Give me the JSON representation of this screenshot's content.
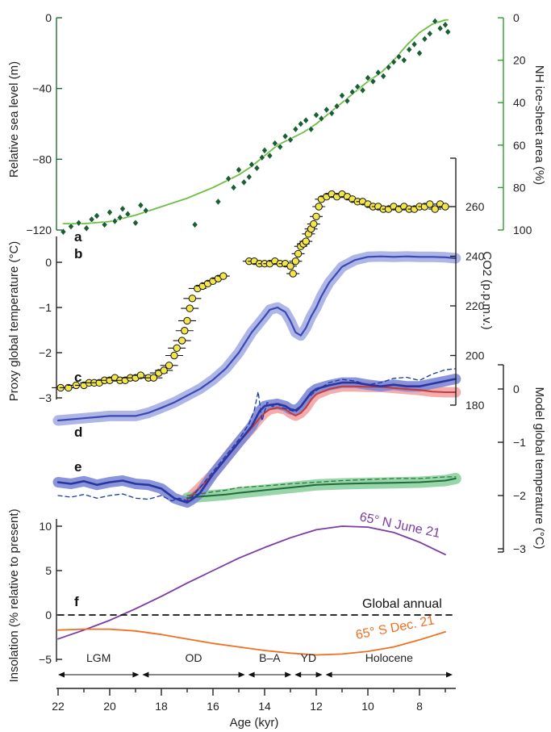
{
  "chart_data": {
    "type": "line",
    "x_axis": {
      "label": "Age (kyr)",
      "range": [
        22,
        6.5
      ],
      "ticks": [
        "22",
        "20",
        "18",
        "16",
        "14",
        "12",
        "10",
        "8"
      ],
      "values": [
        22,
        20,
        18,
        16,
        14,
        12,
        10,
        8
      ]
    },
    "periods": [
      {
        "label": "LGM",
        "start": 22,
        "end": 18.8
      },
      {
        "label": "OD",
        "start": 18.8,
        "end": 14.7
      },
      {
        "label": "B–A",
        "start": 14.7,
        "end": 12.9
      },
      {
        "label": "YD",
        "start": 12.9,
        "end": 11.7
      },
      {
        "label": "Holocene",
        "start": 11.7,
        "end": 6.5
      }
    ],
    "panel_labels": [
      "a",
      "b",
      "c",
      "d",
      "e",
      "f"
    ],
    "panels": {
      "sea_level": {
        "left_axis": {
          "label": "Relative sea level (m)",
          "range": [
            -120,
            0
          ],
          "ticks": [
            "0",
            "−40",
            "−80",
            "−120"
          ],
          "values": [
            0,
            -40,
            -80,
            -120
          ],
          "color": "#1f6b3a"
        },
        "right_axis": {
          "label": "NH ice-sheet area (%)",
          "range": [
            100,
            0
          ],
          "ticks": [
            "0",
            "20",
            "40",
            "60",
            "80",
            "100"
          ],
          "values": [
            0,
            20,
            40,
            60,
            80,
            100
          ],
          "color": "#2e9c2e"
        },
        "sea_level_points": {
          "color": "#1a5e33",
          "x": [
            21.8,
            21.5,
            21.2,
            20.9,
            20.7,
            20.5,
            20.2,
            20.0,
            19.8,
            19.6,
            19.5,
            19.3,
            19.0,
            18.8,
            18.6,
            16.7,
            15.8,
            15.4,
            15.2,
            15.0,
            14.8,
            14.6,
            14.5,
            14.3,
            14.1,
            14.0,
            13.8,
            13.6,
            13.4,
            13.2,
            13.0,
            12.8,
            12.6,
            12.4,
            12.2,
            12.0,
            11.8,
            11.6,
            11.4,
            11.2,
            11.0,
            10.8,
            10.6,
            10.4,
            10.2,
            10.0,
            9.8,
            9.6,
            9.4,
            9.2,
            9.0,
            8.8,
            8.6,
            8.4,
            8.2,
            8.0,
            7.8,
            7.6,
            7.4,
            7.2,
            7.0,
            6.9
          ],
          "y": [
            -121,
            -118,
            -116,
            -119,
            -114,
            -112,
            -117,
            -110,
            -115,
            -113,
            -108,
            -111,
            -116,
            -106,
            -109,
            -117,
            -104,
            -91,
            -96,
            -86,
            -93,
            -90,
            -83,
            -85,
            -79,
            -75,
            -78,
            -71,
            -73,
            -67,
            -69,
            -63,
            -60,
            -58,
            -63,
            -55,
            -57,
            -52,
            -54,
            -50,
            -44,
            -47,
            -42,
            -39,
            -41,
            -34,
            -36,
            -31,
            -33,
            -28,
            -25,
            -22,
            -24,
            -18,
            -15,
            -20,
            -12,
            -9,
            -2,
            -6,
            -4,
            -8
          ]
        },
        "ice_sheet_area": {
          "color": "#6cbf3f",
          "x": [
            21.8,
            21,
            20,
            19,
            18,
            17,
            16,
            15,
            14.5,
            14,
            13.5,
            13,
            12.5,
            12,
            11.5,
            11,
            10.5,
            10,
            9.5,
            9,
            8.5,
            8,
            7.5,
            7,
            6.9
          ],
          "y": [
            97,
            97,
            96,
            93,
            89,
            85,
            80,
            74,
            70,
            65,
            60,
            57,
            54,
            50,
            45,
            40,
            35,
            30,
            26,
            20,
            13,
            7,
            3,
            1,
            1
          ]
        }
      },
      "co2": {
        "right_axis": {
          "label": "CO2 (p.p.m.v.)",
          "range": [
            180,
            270
          ],
          "ticks": [
            "180",
            "200",
            "220",
            "240",
            "260"
          ],
          "values": [
            180,
            200,
            220,
            240,
            260
          ]
        },
        "points": {
          "color": "#f2e64a",
          "x": [
            21.9,
            21.6,
            21.3,
            21.0,
            20.8,
            20.6,
            20.4,
            20.2,
            20.0,
            19.8,
            19.6,
            19.4,
            19.2,
            19.0,
            18.8,
            18.5,
            18.3,
            18.1,
            17.9,
            17.7,
            17.5,
            17.4,
            17.2,
            17.1,
            17.0,
            16.9,
            16.8,
            16.6,
            16.4,
            16.2,
            16.0,
            15.8,
            15.6,
            14.6,
            14.4,
            14.2,
            14.0,
            13.8,
            13.6,
            13.4,
            13.2,
            13.0,
            12.9,
            12.8,
            12.7,
            12.6,
            12.5,
            12.4,
            12.3,
            12.2,
            12.1,
            12.0,
            11.9,
            11.8,
            11.6,
            11.4,
            11.2,
            11.0,
            10.8,
            10.6,
            10.4,
            10.2,
            10.0,
            9.8,
            9.6,
            9.4,
            9.2,
            9.0,
            8.8,
            8.6,
            8.4,
            8.2,
            8.0,
            7.8,
            7.6,
            7.4,
            7.2,
            7.0
          ],
          "y": [
            187,
            187,
            188,
            188,
            189,
            189,
            189,
            190,
            190,
            191,
            190,
            190,
            191,
            191,
            192,
            191,
            191,
            193,
            194,
            196,
            200,
            203,
            206,
            210,
            214,
            219,
            223,
            227,
            228,
            229,
            230,
            231,
            232,
            238,
            238,
            237,
            237,
            237,
            238,
            237,
            237,
            236,
            233,
            238,
            241,
            244,
            245,
            246,
            249,
            251,
            253,
            256,
            260,
            263,
            264,
            265,
            264,
            265,
            264,
            263,
            262,
            262,
            261,
            260,
            260,
            259,
            259,
            260,
            259,
            260,
            259,
            259,
            260,
            260,
            261,
            259,
            261,
            260
          ]
        }
      },
      "temperature": {
        "left_axis": {
          "label": "Proxy global temperature (°C)",
          "range": [
            -3.7,
            0.3
          ],
          "ticks": [
            "0",
            "−1",
            "−2",
            "−3"
          ],
          "values": [
            0,
            -1,
            -2,
            -3
          ]
        },
        "proxy_global": {
          "name": "Proxy global",
          "color": "#3a49b5",
          "x": [
            22,
            21,
            20,
            19,
            18.5,
            18,
            17.5,
            17,
            16.5,
            16,
            15.5,
            15,
            14.5,
            14,
            13.8,
            13.5,
            13.2,
            13,
            12.8,
            12.6,
            12.4,
            12.2,
            12,
            11.8,
            11.5,
            11,
            10.5,
            10,
            9.5,
            9,
            8.5,
            8,
            7.5,
            7,
            6.6
          ],
          "y": [
            -3.5,
            -3.45,
            -3.4,
            -3.4,
            -3.33,
            -3.22,
            -3.1,
            -2.95,
            -2.8,
            -2.6,
            -2.35,
            -2.0,
            -1.55,
            -1.2,
            -1.05,
            -1.0,
            -1.1,
            -1.3,
            -1.55,
            -1.62,
            -1.45,
            -1.2,
            -1.0,
            -0.75,
            -0.45,
            -0.1,
            0.05,
            0.12,
            0.13,
            0.12,
            0.13,
            0.12,
            0.12,
            0.11,
            0.09
          ]
        }
      },
      "model": {
        "right_axis": {
          "label": "Model global temperature (°C)",
          "range": [
            -3.6,
            0.35
          ],
          "ticks": [
            "0",
            "−1",
            "−2",
            "−3"
          ],
          "values": [
            0,
            -1,
            -2,
            -3
          ]
        },
        "proxy_tropics": {
          "color": "#3a49b5",
          "x": [
            22,
            21.5,
            21,
            20.5,
            20,
            19.5,
            19,
            18.5,
            18,
            17.5,
            17.2,
            17,
            16.8,
            16.5,
            16,
            15.5,
            15,
            14.5,
            14.2,
            14,
            13.8,
            13.5,
            13.2,
            13,
            12.8,
            12.6,
            12.4,
            12.2,
            12,
            11.5,
            11,
            10.5,
            10,
            9.5,
            9,
            8.5,
            8,
            7.5,
            7,
            6.6
          ],
          "y": [
            -1.75,
            -1.78,
            -1.73,
            -1.8,
            -1.75,
            -1.72,
            -1.78,
            -1.8,
            -1.87,
            -2.05,
            -2.1,
            -2.13,
            -2.07,
            -1.95,
            -1.6,
            -1.3,
            -1.0,
            -0.7,
            -0.42,
            -0.32,
            -0.3,
            -0.28,
            -0.32,
            -0.38,
            -0.4,
            -0.33,
            -0.2,
            -0.07,
            0.0,
            0.07,
            0.12,
            0.12,
            0.08,
            0.05,
            0.08,
            0.05,
            0.05,
            0.1,
            0.15,
            0.19
          ]
        },
        "model_red": {
          "color": "#e35d5d",
          "x": [
            17,
            16.5,
            16,
            15.5,
            15,
            14.5,
            14.2,
            14,
            13.8,
            13.5,
            13.2,
            13,
            12.8,
            12.6,
            12.4,
            12.2,
            12,
            11.5,
            11,
            10.5,
            10,
            9.5,
            9,
            8.5,
            8,
            7.5,
            7,
            6.6
          ],
          "y": [
            -2.08,
            -1.85,
            -1.6,
            -1.3,
            -1.0,
            -0.73,
            -0.55,
            -0.45,
            -0.38,
            -0.35,
            -0.38,
            -0.45,
            -0.5,
            -0.45,
            -0.35,
            -0.2,
            -0.1,
            0.0,
            0.05,
            0.05,
            0.04,
            0.04,
            0.02,
            0.0,
            -0.02,
            -0.05,
            -0.06,
            -0.06
          ]
        },
        "model_green": {
          "color": "#3a9e5c",
          "x": [
            17,
            16.5,
            16,
            15.5,
            15,
            14,
            13,
            12,
            11,
            10,
            9,
            8,
            7,
            6.6
          ],
          "y": [
            -2.05,
            -2.02,
            -2.0,
            -1.98,
            -1.95,
            -1.9,
            -1.85,
            -1.8,
            -1.78,
            -1.77,
            -1.76,
            -1.75,
            -1.72,
            -1.68
          ]
        },
        "model_blue_dashed": {
          "color": "#1a3aa8",
          "x": [
            22,
            21.5,
            21,
            20.5,
            20,
            19.5,
            19,
            18.5,
            18,
            17.6,
            17.3,
            17,
            16.8,
            16.5,
            16,
            15.5,
            15,
            14.6,
            14.4,
            14.25,
            14.1,
            13.9,
            13.7,
            13.5,
            13.3,
            13,
            12.8,
            12.6,
            12.4,
            12,
            11.5,
            11,
            10.5,
            10,
            9.5,
            9,
            8.5,
            8,
            7.5,
            7,
            6.6
          ],
          "y": [
            -2.0,
            -2.03,
            -1.98,
            -2.05,
            -2.0,
            -1.97,
            -2.05,
            -2.07,
            -2.0,
            -2.1,
            -2.05,
            -2.1,
            -2.02,
            -1.85,
            -1.55,
            -1.25,
            -0.95,
            -0.65,
            -0.4,
            -0.05,
            -0.6,
            -0.25,
            -0.33,
            -0.28,
            -0.35,
            -0.4,
            -0.43,
            -0.35,
            -0.2,
            -0.03,
            0.12,
            0.18,
            0.15,
            0.08,
            0.12,
            0.2,
            0.22,
            0.16,
            0.28,
            0.36,
            0.38
          ]
        },
        "model_green_dashed": {
          "color": "#2d7a3a",
          "x": [
            17,
            16.5,
            16,
            15.5,
            15,
            14,
            13,
            12,
            11,
            10,
            9,
            8,
            7,
            6.6
          ],
          "y": [
            -2.0,
            -1.97,
            -1.93,
            -1.9,
            -1.85,
            -1.82,
            -1.78,
            -1.75,
            -1.72,
            -1.7,
            -1.68,
            -1.68,
            -1.65,
            -1.65
          ]
        }
      },
      "insolation": {
        "left_axis": {
          "label": "Insolation (% relative to present)",
          "range": [
            -5,
            10
          ],
          "ticks": [
            "10",
            "5",
            "0",
            "−5"
          ],
          "values": [
            10,
            5,
            0,
            -5
          ]
        },
        "series": [
          {
            "name": "65° N June 21",
            "color": "#7b3aa8",
            "x": [
              22,
              21,
              20,
              19,
              18,
              17,
              16,
              15,
              14,
              13,
              12,
              11,
              10,
              9,
              8,
              7
            ],
            "y": [
              -2.7,
              -1.7,
              -0.6,
              0.7,
              2.1,
              3.6,
              5.0,
              6.4,
              7.6,
              8.7,
              9.6,
              10.0,
              9.9,
              9.3,
              8.2,
              6.8
            ]
          },
          {
            "name": "65° S Dec. 21",
            "color": "#f07020",
            "x": [
              22,
              21,
              20,
              19,
              18,
              17,
              16,
              15,
              14,
              13,
              12,
              11,
              10,
              9,
              8,
              7
            ],
            "y": [
              -1.7,
              -1.6,
              -1.6,
              -1.8,
              -2.2,
              -2.7,
              -3.2,
              -3.6,
              -4.0,
              -4.3,
              -4.5,
              -4.4,
              -4.1,
              -3.6,
              -2.8,
              -1.9
            ]
          },
          {
            "name": "Global annual",
            "color": "#111111",
            "dashed": true,
            "x": [
              22,
              6.6
            ],
            "y": [
              0,
              0
            ]
          }
        ]
      }
    }
  }
}
